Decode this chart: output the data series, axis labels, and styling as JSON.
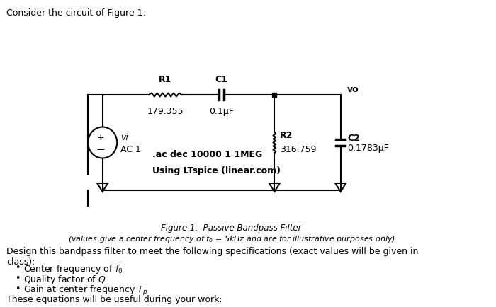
{
  "title_text": "Consider the circuit of Figure 1.",
  "fig_caption_line1": "Figure 1.  Passive Bandpass Filter",
  "fig_caption_line2": "(values give a center frequency of $f_o$ = 5kHz and are for illustrative purposes only)",
  "body_text": "Design this bandpass filter to meet the following specifications (exact values will be given in\nclass):",
  "bullet1": "Center frequency of $f_0$",
  "bullet2": "Quality factor of $Q$",
  "bullet3": "Gain at center frequency $T_p$",
  "footer_text": "These equations will be useful during your work:",
  "R1_label": "R1",
  "R1_val": "179.355",
  "C1_label": "C1",
  "C1_val": "0.1μF",
  "VO_label": "vo",
  "R2_label": "R2",
  "R2_val": "316.759",
  "C2_label": "C2",
  "C2_val": "0.1783μF",
  "vi_label": "vi",
  "ac_label": "AC 1",
  "spice_cmd": ".ac dec 10000 1 1MEG",
  "spice_tool": "Using LTspice (linear.com)",
  "bg_color": "#ffffff",
  "text_color": "#000000"
}
